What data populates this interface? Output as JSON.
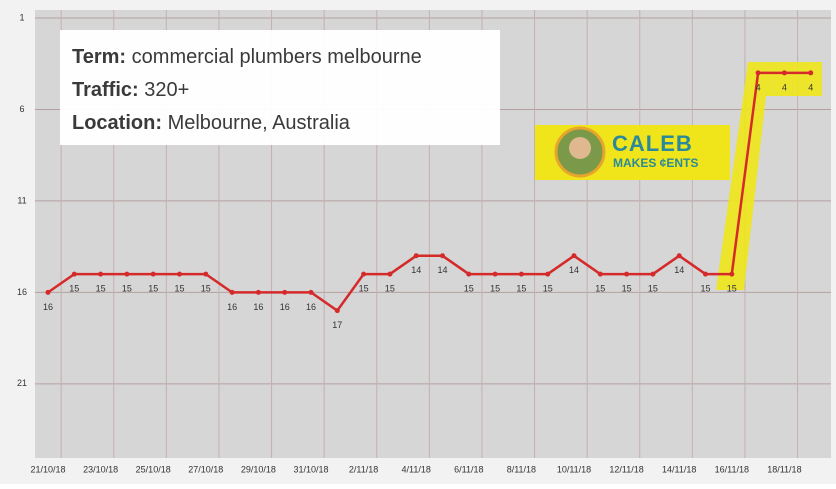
{
  "chart_data": {
    "type": "line",
    "categories": [
      "21/10/18",
      null,
      "23/10/18",
      null,
      "25/10/18",
      null,
      "27/10/18",
      null,
      "29/10/18",
      null,
      "31/10/18",
      null,
      "2/11/18",
      null,
      "4/11/18",
      null,
      "6/11/18",
      null,
      "8/11/18",
      null,
      "10/11/18",
      null,
      "12/11/18",
      null,
      "14/11/18",
      null,
      "16/11/18",
      null,
      "18/11/18",
      null
    ],
    "values": [
      16,
      15,
      15,
      15,
      15,
      15,
      15,
      16,
      16,
      16,
      16,
      17,
      15,
      15,
      14,
      14,
      15,
      15,
      15,
      15,
      14,
      15,
      15,
      15,
      14,
      15,
      15,
      4,
      4,
      4
    ],
    "color": "#d42a2a",
    "ylim": [
      1,
      25
    ],
    "yticks": [
      1,
      6,
      11,
      16,
      21
    ],
    "inverted": true,
    "grid": true
  },
  "overlay": {
    "term_label": "Term:",
    "term": "commercial plumbers melbourne",
    "traffic_label": "Traffic:",
    "traffic": "320+",
    "location_label": "Location:",
    "location": "Melbourne, Australia"
  },
  "logo": {
    "line1": "CALEB",
    "line2": "MAKES ¢ENTS"
  }
}
